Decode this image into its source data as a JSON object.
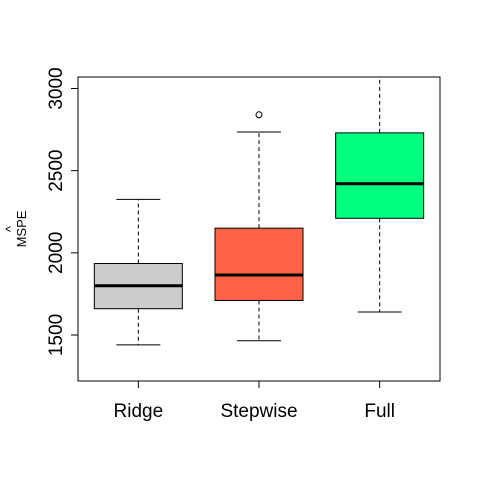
{
  "chart_data": {
    "type": "boxplot",
    "title": "",
    "xlabel": "",
    "ylabel": "MSPE",
    "ylabel_accent": "^",
    "ylim": [
      1220,
      3070
    ],
    "yticks": [
      1500,
      2000,
      2500,
      3000
    ],
    "categories": [
      "Ridge",
      "Stepwise",
      "Full"
    ],
    "boxes": [
      {
        "name": "Ridge",
        "color": "#CCCCCC",
        "whisker_low": 1440,
        "q1": 1660,
        "median": 1800,
        "q3": 1935,
        "whisker_high": 2325,
        "outliers": []
      },
      {
        "name": "Stepwise",
        "color": "#FF6347",
        "whisker_low": 1465,
        "q1": 1710,
        "median": 1865,
        "q3": 2150,
        "whisker_high": 2735,
        "outliers": [
          2840
        ]
      },
      {
        "name": "Full",
        "color": "#00FF7F",
        "whisker_low": 1640,
        "q1": 2210,
        "median": 2420,
        "q3": 2730,
        "whisker_high": 3070,
        "outliers": []
      }
    ],
    "grid": false,
    "legend": "none"
  }
}
